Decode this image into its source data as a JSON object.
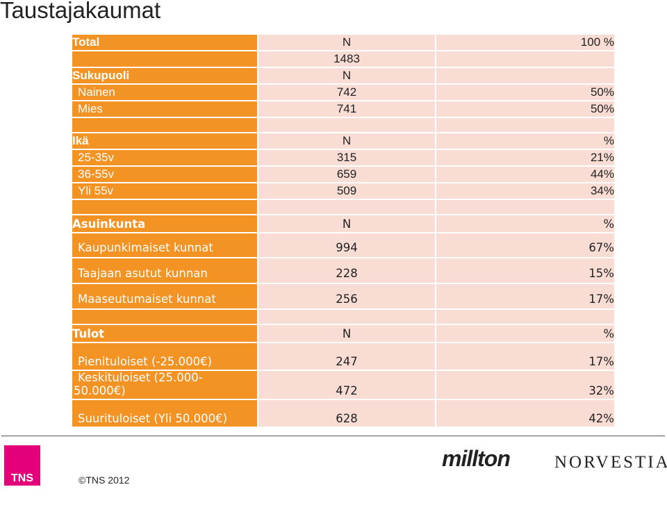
{
  "title": "Taustajakaumat",
  "sections": {
    "total": {
      "label": "Total",
      "n_header": "N",
      "pct_header": "100 %",
      "n_value": "1483"
    },
    "gender": {
      "label": "Sukupuoli",
      "n_header": "N",
      "rows": [
        {
          "label": "Nainen",
          "n": "742",
          "pct": "50%"
        },
        {
          "label": "Mies",
          "n": "741",
          "pct": "50%"
        }
      ]
    },
    "age": {
      "label": "Ikä",
      "n_header": "N",
      "pct_header": "%",
      "rows": [
        {
          "label": "25-35v",
          "n": "315",
          "pct": "21%"
        },
        {
          "label": "36-55v",
          "n": "659",
          "pct": "44%"
        },
        {
          "label": "Yli 55v",
          "n": "509",
          "pct": "34%"
        }
      ]
    },
    "housing": {
      "label": "Asuinkunta",
      "n_header": "N",
      "pct_header": "%",
      "rows": [
        {
          "label": "Kaupunkimaiset kunnat",
          "n": "994",
          "pct": "67%"
        },
        {
          "label": "Taajaan asutut kunnan",
          "n": "228",
          "pct": "15%"
        },
        {
          "label": "Maaseutumaiset kunnat",
          "n": "256",
          "pct": "17%"
        }
      ]
    },
    "income": {
      "label": "Tulot",
      "n_header": "N",
      "pct_header": "%",
      "rows": [
        {
          "label": "Pienituloiset (-25.000€)",
          "n": "247",
          "pct": "17%"
        },
        {
          "label_line1": "Keskituloiset (25.000-",
          "label_line2": "50.000€)",
          "n": "472",
          "pct": "32%"
        },
        {
          "label": "Suurituloiset (Yli 50.000€)",
          "n": "628",
          "pct": "42%"
        }
      ]
    }
  },
  "footer": {
    "tns_logo": "TNS",
    "copyright": "©TNS 2012",
    "milton_logo": "millton",
    "norvestia_logo": "NORVESTIA"
  }
}
